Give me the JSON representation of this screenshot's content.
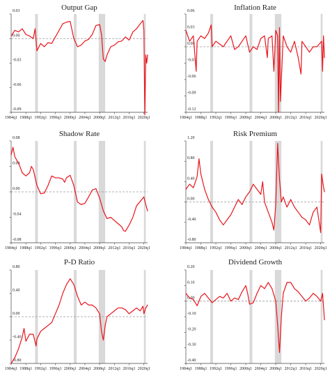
{
  "figure": {
    "line_color": "#e8141c",
    "recession_color": "#d9d9d9",
    "zero_line_color": "#999999",
    "x_tick_labels": [
      "1984q1",
      "1988q1",
      "1992q1",
      "1996q1",
      "2000q1",
      "2004q1",
      "2008q1",
      "2012q1",
      "2016q1",
      "2020q1"
    ]
  },
  "chart_data": [
    {
      "type": "line",
      "title": "Output Gap",
      "x": [
        1984.0,
        1985.0,
        1986.0,
        1987.0,
        1988.0,
        1989.0,
        1990.0,
        1990.5,
        1991.0,
        1992.0,
        1993.0,
        1994.0,
        1995.0,
        1996.0,
        1997.0,
        1998.0,
        1999.0,
        2000.0,
        2001.0,
        2002.0,
        2003.0,
        2004.0,
        2005.0,
        2006.0,
        2007.0,
        2008.0,
        2008.5,
        2009.0,
        2009.5,
        2010.0,
        2011.0,
        2012.0,
        2013.0,
        2014.0,
        2015.0,
        2016.0,
        2017.0,
        2018.0,
        2019.0,
        2019.75,
        2020.0,
        2020.25,
        2020.5,
        2020.75,
        2021.0
      ],
      "values": [
        0.003,
        0.01,
        0.008,
        0.012,
        0.005,
        0.003,
        0.0,
        0.012,
        -0.015,
        -0.006,
        -0.01,
        -0.005,
        -0.006,
        0.002,
        0.01,
        0.018,
        0.02,
        0.021,
        0.0,
        -0.01,
        -0.008,
        -0.003,
        -0.001,
        0.005,
        0.016,
        0.017,
        0.005,
        -0.025,
        -0.028,
        -0.02,
        -0.01,
        -0.008,
        -0.004,
        -0.003,
        0.002,
        -0.002,
        0.008,
        0.012,
        0.018,
        0.022,
        0.01,
        -0.093,
        -0.02,
        -0.03,
        -0.02
      ],
      "xlim": [
        1984,
        2021
      ],
      "ylim": [
        -0.09,
        0.03
      ],
      "y_ticks": [
        -0.09,
        -0.06,
        -0.03,
        0.0,
        0.03
      ],
      "y_tick_labels": [
        "-0.09",
        "-0.06",
        "-0.03",
        "0.00",
        "0.03"
      ],
      "recessions": [
        [
          1990.5,
          1991.25
        ],
        [
          2001.0,
          2001.75
        ],
        [
          2007.75,
          2009.5
        ],
        [
          2020.0,
          2020.5
        ]
      ]
    },
    {
      "type": "line",
      "title": "Inflation Rate",
      "x": [
        1984.0,
        1985.0,
        1986.0,
        1986.75,
        1987.0,
        1988.0,
        1989.0,
        1990.0,
        1990.75,
        1991.0,
        1992.0,
        1993.0,
        1994.0,
        1995.0,
        1996.0,
        1997.0,
        1998.0,
        1999.0,
        2000.0,
        2001.0,
        2002.0,
        2003.0,
        2004.0,
        2005.0,
        2005.75,
        2006.0,
        2007.0,
        2007.5,
        2008.0,
        2008.5,
        2008.75,
        2009.0,
        2009.25,
        2010.0,
        2011.0,
        2012.0,
        2013.0,
        2014.0,
        2014.75,
        2015.0,
        2016.0,
        2017.0,
        2018.0,
        2019.0,
        2020.25,
        2020.5,
        2020.75,
        2021.0
      ],
      "values": [
        0.03,
        0.01,
        0.02,
        -0.045,
        0.01,
        0.02,
        0.015,
        0.025,
        0.04,
        0.0,
        0.01,
        0.005,
        0.0,
        0.01,
        0.02,
        -0.005,
        0.0,
        0.01,
        0.02,
        -0.01,
        0.0,
        -0.005,
        0.015,
        0.02,
        -0.02,
        0.015,
        0.02,
        -0.045,
        0.03,
        0.02,
        -0.12,
        0.035,
        -0.1,
        0.02,
        0.0,
        -0.01,
        0.01,
        -0.02,
        -0.05,
        0.01,
        0.0,
        -0.01,
        0.0,
        0.0,
        0.01,
        -0.045,
        0.02,
        -0.02
      ],
      "xlim": [
        1984,
        2021
      ],
      "ylim": [
        -0.12,
        0.06
      ],
      "y_ticks": [
        -0.12,
        -0.09,
        -0.06,
        -0.03,
        0.0,
        0.03,
        0.06
      ],
      "y_tick_labels": [
        "-0.12",
        "-0.09",
        "-0.06",
        "-0.03",
        "0.00",
        "0.03",
        "0.06"
      ],
      "recessions": [
        [
          1990.5,
          1991.25
        ],
        [
          2001.0,
          2001.75
        ],
        [
          2007.75,
          2009.5
        ],
        [
          2020.0,
          2020.5
        ]
      ]
    },
    {
      "type": "line",
      "title": "Shadow Rate",
      "x": [
        1984.0,
        1984.5,
        1985.0,
        1986.0,
        1986.5,
        1987.0,
        1988.0,
        1989.0,
        1989.5,
        1990.0,
        1991.0,
        1992.0,
        1993.0,
        1994.0,
        1995.0,
        1996.0,
        1997.0,
        1998.0,
        1998.5,
        1999.0,
        2000.0,
        2001.0,
        2002.0,
        2003.0,
        2004.0,
        2005.0,
        2006.0,
        2007.0,
        2008.0,
        2009.0,
        2010.0,
        2011.0,
        2012.0,
        2013.0,
        2014.0,
        2014.5,
        2015.0,
        2016.0,
        2017.0,
        2018.0,
        2019.0,
        2020.0,
        2020.5,
        2021.0
      ],
      "values": [
        0.058,
        0.07,
        0.055,
        0.045,
        0.038,
        0.03,
        0.025,
        0.03,
        0.04,
        0.035,
        0.01,
        -0.003,
        -0.002,
        0.01,
        0.025,
        0.022,
        0.022,
        0.02,
        0.015,
        0.022,
        0.026,
        0.01,
        -0.016,
        -0.02,
        -0.018,
        -0.008,
        0.003,
        0.005,
        -0.01,
        -0.03,
        -0.042,
        -0.04,
        -0.045,
        -0.05,
        -0.055,
        -0.061,
        -0.062,
        -0.052,
        -0.04,
        -0.022,
        -0.015,
        -0.008,
        -0.02,
        -0.03
      ],
      "xlim": [
        1984,
        2021
      ],
      "ylim": [
        -0.08,
        0.08
      ],
      "y_ticks": [
        -0.08,
        -0.04,
        0.0,
        0.04,
        0.08
      ],
      "y_tick_labels": [
        "-0.08",
        "-0.04",
        "0.00",
        "0.04",
        "0.08"
      ],
      "recessions": [
        [
          1990.5,
          1991.25
        ],
        [
          2001.0,
          2001.75
        ],
        [
          2007.75,
          2009.5
        ],
        [
          2020.0,
          2020.5
        ]
      ]
    },
    {
      "type": "line",
      "title": "Risk Premium",
      "x": [
        1984.0,
        1985.0,
        1986.0,
        1987.0,
        1987.5,
        1988.0,
        1989.0,
        1990.0,
        1991.0,
        1992.0,
        1993.0,
        1994.0,
        1995.0,
        1996.0,
        1997.0,
        1998.0,
        1999.0,
        2000.0,
        2001.0,
        2002.0,
        2003.0,
        2004.0,
        2004.5,
        2005.0,
        2006.0,
        2007.0,
        2007.5,
        2008.0,
        2008.5,
        2009.0,
        2009.5,
        2010.0,
        2011.0,
        2012.0,
        2013.0,
        2014.0,
        2015.0,
        2016.0,
        2017.0,
        2018.0,
        2019.0,
        2020.0,
        2020.25,
        2020.75,
        2021.0
      ],
      "values": [
        0.25,
        0.35,
        0.28,
        0.5,
        0.85,
        0.55,
        0.25,
        0.05,
        -0.1,
        -0.2,
        -0.35,
        -0.45,
        -0.35,
        -0.25,
        -0.1,
        0.05,
        -0.05,
        0.1,
        0.2,
        0.35,
        0.25,
        0.15,
        0.4,
        0.0,
        -0.2,
        -0.4,
        -0.55,
        -0.05,
        1.15,
        0.45,
        0.0,
        0.1,
        -0.1,
        0.05,
        -0.1,
        -0.2,
        -0.3,
        -0.35,
        -0.45,
        -0.2,
        -0.1,
        -0.6,
        0.55,
        0.3,
        0.2
      ],
      "xlim": [
        1984,
        2021
      ],
      "ylim": [
        -0.8,
        1.2
      ],
      "y_ticks": [
        -0.8,
        -0.4,
        0.0,
        0.4,
        0.8,
        1.2
      ],
      "y_tick_labels": [
        "-0.80",
        "-0.40",
        "0.00",
        "0.40",
        "0.80",
        "1.20"
      ],
      "recessions": [
        [
          1990.5,
          1991.25
        ],
        [
          2001.0,
          2001.75
        ],
        [
          2007.75,
          2009.5
        ],
        [
          2020.0,
          2020.5
        ]
      ]
    },
    {
      "type": "line",
      "title": "P-D Ratio",
      "x": [
        1984.0,
        1985.0,
        1986.0,
        1987.0,
        1987.5,
        1988.0,
        1989.0,
        1990.0,
        1990.75,
        1991.0,
        1992.0,
        1993.0,
        1994.0,
        1995.0,
        1996.0,
        1997.0,
        1998.0,
        1999.0,
        2000.0,
        2001.0,
        2002.0,
        2003.0,
        2004.0,
        2005.0,
        2006.0,
        2007.0,
        2008.0,
        2008.5,
        2009.0,
        2009.5,
        2010.0,
        2011.0,
        2012.0,
        2013.0,
        2014.0,
        2015.0,
        2016.0,
        2017.0,
        2018.0,
        2019.0,
        2019.75,
        2020.0,
        2020.5,
        2021.0
      ],
      "values": [
        -0.8,
        -0.7,
        -0.55,
        -0.35,
        -0.2,
        -0.42,
        -0.3,
        -0.3,
        -0.5,
        -0.38,
        -0.25,
        -0.2,
        -0.15,
        -0.1,
        0.05,
        0.2,
        0.4,
        0.55,
        0.65,
        0.55,
        0.35,
        0.2,
        0.25,
        0.2,
        0.2,
        0.15,
        0.05,
        -0.25,
        -0.4,
        -0.15,
        0.0,
        0.05,
        0.1,
        0.15,
        0.15,
        0.12,
        0.05,
        0.1,
        0.15,
        0.1,
        0.18,
        0.05,
        0.15,
        0.2
      ],
      "xlim": [
        1984,
        2021
      ],
      "ylim": [
        -0.8,
        0.8
      ],
      "y_ticks": [
        -0.8,
        -0.4,
        0.0,
        0.4,
        0.8
      ],
      "y_tick_labels": [
        "-0.80",
        "-0.40",
        "0.00",
        "0.40",
        "0.80"
      ],
      "recessions": [
        [
          1990.5,
          1991.25
        ],
        [
          2001.0,
          2001.75
        ],
        [
          2007.75,
          2009.5
        ],
        [
          2020.0,
          2020.5
        ]
      ]
    },
    {
      "type": "line",
      "title": "Dividend Growth",
      "x": [
        1984.0,
        1985.0,
        1986.0,
        1987.0,
        1988.0,
        1989.0,
        1990.0,
        1991.0,
        1992.0,
        1993.0,
        1994.0,
        1995.0,
        1996.0,
        1997.0,
        1998.0,
        1999.0,
        2000.0,
        2000.5,
        2001.0,
        2002.0,
        2003.0,
        2004.0,
        2005.0,
        2006.0,
        2007.0,
        2008.0,
        2008.5,
        2009.0,
        2009.5,
        2010.0,
        2011.0,
        2012.0,
        2013.0,
        2014.0,
        2015.0,
        2016.0,
        2017.0,
        2018.0,
        2019.0,
        2020.0,
        2020.5,
        2021.0
      ],
      "values": [
        0.05,
        0.02,
        0.01,
        -0.03,
        0.03,
        0.05,
        0.02,
        -0.01,
        0.01,
        0.03,
        0.02,
        0.05,
        0.0,
        0.02,
        0.01,
        0.06,
        0.1,
        0.05,
        -0.02,
        -0.01,
        0.05,
        0.1,
        0.08,
        0.12,
        0.08,
        0.0,
        -0.15,
        -0.33,
        -0.1,
        0.05,
        0.12,
        0.12,
        0.08,
        0.06,
        0.03,
        0.0,
        0.02,
        0.05,
        0.03,
        0.0,
        0.05,
        -0.12
      ],
      "xlim": [
        1984,
        2021
      ],
      "ylim": [
        -0.4,
        0.2
      ],
      "y_ticks": [
        -0.4,
        -0.3,
        -0.2,
        -0.1,
        0.0,
        0.1,
        0.2
      ],
      "y_tick_labels": [
        "-0.40",
        "-0.30",
        "-0.20",
        "-0.10",
        "0.00",
        "0.10",
        "0.20"
      ],
      "recessions": [
        [
          1990.5,
          1991.25
        ],
        [
          2001.0,
          2001.75
        ],
        [
          2007.75,
          2009.5
        ],
        [
          2020.0,
          2020.5
        ]
      ]
    }
  ]
}
